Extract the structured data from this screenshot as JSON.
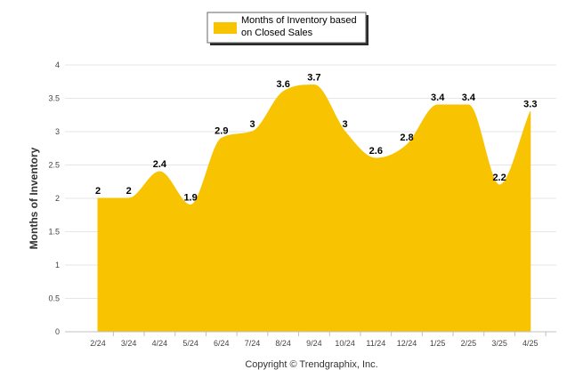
{
  "chart_data": {
    "type": "area",
    "categories": [
      "2/24",
      "3/24",
      "4/24",
      "5/24",
      "6/24",
      "7/24",
      "8/24",
      "9/24",
      "10/24",
      "11/24",
      "12/24",
      "1/25",
      "2/25",
      "3/25",
      "4/25"
    ],
    "series": [
      {
        "name": "Months of Inventory based on Closed Sales",
        "values": [
          2,
          2,
          2.4,
          1.9,
          2.9,
          3,
          3.6,
          3.7,
          3,
          2.6,
          2.8,
          3.4,
          3.4,
          2.2,
          3.3
        ],
        "color": "#f8c300"
      }
    ],
    "data_labels": [
      "2",
      "2",
      "2.4",
      "1.9",
      "2.9",
      "3",
      "3.6",
      "3.7",
      "3",
      "2.6",
      "2.8",
      "3.4",
      "3.4",
      "2.2",
      "3.3"
    ],
    "legend": {
      "line1": "Months of Inventory based",
      "line2": "on Closed Sales",
      "position": "top-center"
    },
    "ylabel": "Months of Inventory",
    "xlabel": "",
    "ylim": [
      0,
      4
    ],
    "yticks": [
      "0",
      "0.5",
      "1",
      "1.5",
      "2",
      "2.5",
      "3",
      "3.5",
      "4"
    ],
    "grid": true,
    "credit": "Copyright © Trendgraphix, Inc."
  }
}
